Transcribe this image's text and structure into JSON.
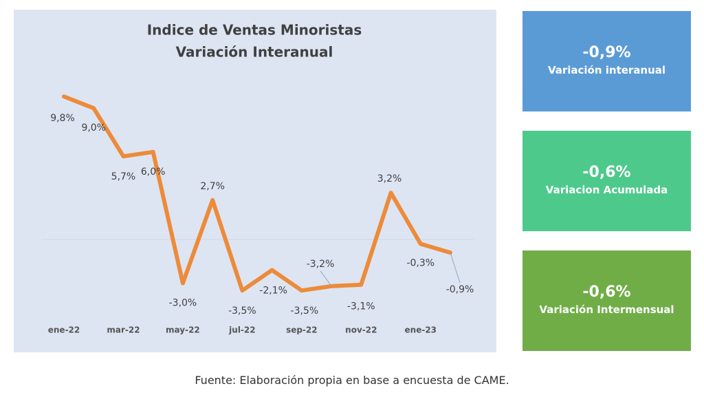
{
  "chart_data": {
    "type": "line",
    "title": "Indice de Ventas Minoristas",
    "subtitle": "Variación Interanual",
    "categories": [
      "ene-22",
      null,
      "mar-22",
      null,
      "may-22",
      null,
      "jul-22",
      null,
      "sep-22",
      null,
      "nov-22",
      null,
      "ene-23",
      null
    ],
    "series": [
      {
        "name": "Variación interanual",
        "color": "#ed8b3a",
        "values": [
          9.8,
          9.0,
          5.7,
          6.0,
          -3.0,
          2.7,
          -3.5,
          -2.1,
          -3.5,
          -3.2,
          -3.1,
          3.2,
          -0.3,
          -0.9
        ],
        "value_labels": [
          "9,8%",
          "9,0%",
          "5,7%",
          "6,0%",
          "-3,0%",
          "2,7%",
          "-3,5%",
          "-2,1%",
          "-3,5%",
          "-3,2%",
          "-3,1%",
          "3,2%",
          "-0,3%",
          "-0,9%"
        ]
      }
    ],
    "ylim": [
      -5,
      10
    ],
    "yticks": [
      0
    ],
    "grid": true
  },
  "cards": [
    {
      "value": "-0,9%",
      "label": "Variación interanual",
      "color": "#5b9bd5"
    },
    {
      "value": "-0,6%",
      "label": "Variacion Acumulada",
      "color": "#4ec98c"
    },
    {
      "value": "-0,6%",
      "label": "Variación Intermensual",
      "color": "#70ad47"
    }
  ],
  "source": "Fuente: Elaboración propia en base a encuesta de CAME."
}
